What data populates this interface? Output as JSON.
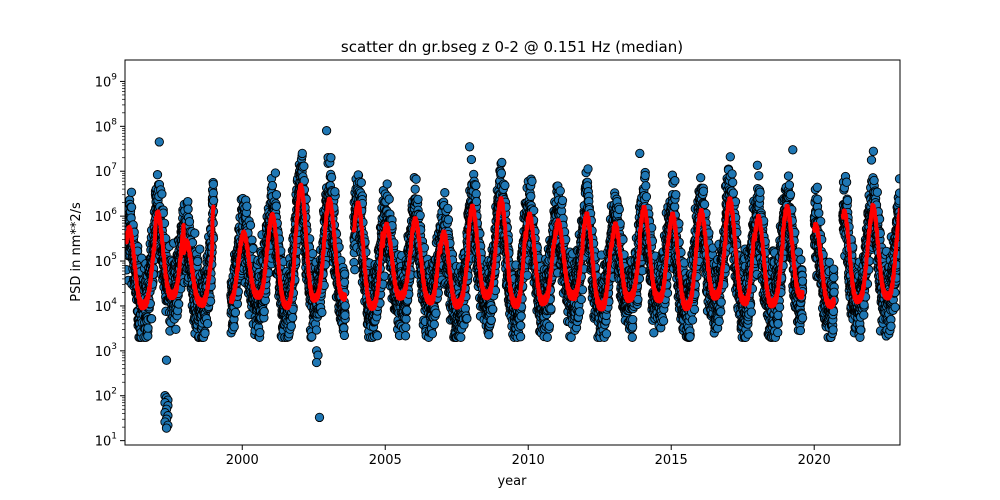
{
  "chart_data": {
    "type": "scatter",
    "title": "scatter dn gr.bseg z 0-2 @ 0.151 Hz (median)",
    "xlabel": "year",
    "ylabel": "PSD in nm**2/s",
    "xlim": [
      1995.9,
      2023.0
    ],
    "ylim": [
      8,
      3000000000
    ],
    "yscale": "log",
    "x_ticks": [
      2000,
      2005,
      2010,
      2015,
      2020
    ],
    "y_ticks": [
      {
        "value": 10,
        "base": "10",
        "exp": "1"
      },
      {
        "value": 100,
        "base": "10",
        "exp": "2"
      },
      {
        "value": 1000,
        "base": "10",
        "exp": "3"
      },
      {
        "value": 10000,
        "base": "10",
        "exp": "4"
      },
      {
        "value": 100000,
        "base": "10",
        "exp": "5"
      },
      {
        "value": 1000000,
        "base": "10",
        "exp": "6"
      },
      {
        "value": 10000000,
        "base": "10",
        "exp": "7"
      },
      {
        "value": 100000000,
        "base": "10",
        "exp": "8"
      },
      {
        "value": 1000000000,
        "base": "10",
        "exp": "9"
      }
    ],
    "grid": false,
    "colors": {
      "points": "#1f77b4",
      "point_edge": "#000000",
      "median": "#ff0000"
    },
    "gaps": [
      [
        1999.0,
        1999.6
      ],
      [
        2003.6,
        2003.9
      ],
      [
        2019.6,
        2020.0
      ],
      [
        2020.7,
        2021.0
      ]
    ],
    "series": [
      {
        "kind": "scatter",
        "period_years": 1.0,
        "peak_phase": 0.05,
        "seasonal_median_range": [
          15000,
          1500000
        ],
        "scatter_range": [
          2000,
          40000000
        ],
        "outliers": [
          {
            "x": 1997.35,
            "y": 620
          },
          {
            "x": 1997.3,
            "y": 100
          },
          {
            "x": 1997.35,
            "y": 90
          },
          {
            "x": 1997.4,
            "y": 80
          },
          {
            "x": 1997.3,
            "y": 70
          },
          {
            "x": 1997.4,
            "y": 60
          },
          {
            "x": 1997.35,
            "y": 50
          },
          {
            "x": 1997.3,
            "y": 42
          },
          {
            "x": 1997.4,
            "y": 36
          },
          {
            "x": 1997.35,
            "y": 30
          },
          {
            "x": 1997.3,
            "y": 26
          },
          {
            "x": 1997.4,
            "y": 22
          },
          {
            "x": 1997.35,
            "y": 19
          },
          {
            "x": 2002.6,
            "y": 1000
          },
          {
            "x": 2002.65,
            "y": 800
          },
          {
            "x": 2002.6,
            "y": 550
          },
          {
            "x": 2002.7,
            "y": 33
          }
        ],
        "high_points": [
          {
            "x": 1997.1,
            "y": 45000000
          },
          {
            "x": 2002.95,
            "y": 80000000
          },
          {
            "x": 2007.95,
            "y": 35000000
          },
          {
            "x": 2019.25,
            "y": 30000000
          },
          {
            "x": 2002.1,
            "y": 25000000
          },
          {
            "x": 2013.9,
            "y": 25000000
          }
        ]
      },
      {
        "kind": "line",
        "segments": [
          {
            "start": 1995.95,
            "end": 1999.0,
            "peaks": [
              500000,
              1100000,
              250000,
              2000000
            ]
          },
          {
            "start": 1999.6,
            "end": 2003.6,
            "peaks": [
              400000,
              1000000,
              4500000,
              2200000
            ]
          },
          {
            "start": 2003.9,
            "end": 2019.6,
            "peaks": [
              1800000,
              600000,
              800000,
              400000,
              1500000,
              2200000,
              1000000,
              700000,
              1000000,
              600000,
              1400000,
              1000000,
              1200000,
              2200000,
              900000,
              1500000,
              800000,
              1600000,
              700000,
              600000
            ]
          },
          {
            "start": 2020.0,
            "end": 2020.7,
            "peaks": [
              600000
            ]
          },
          {
            "start": 2021.0,
            "end": 2023.0,
            "peaks": [
              1200000,
              1600000,
              900000
            ]
          }
        ],
        "median_low_range": [
          10000,
          20000
        ]
      }
    ]
  }
}
